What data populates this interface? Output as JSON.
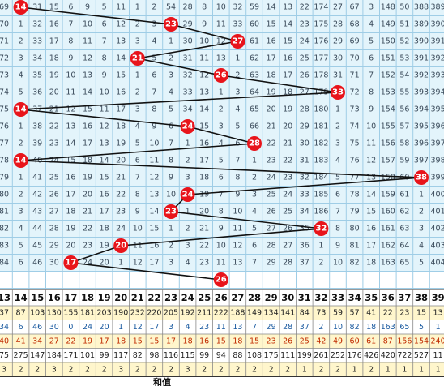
{
  "chart_data": {
    "type": "trend",
    "columns": [
      13,
      14,
      15,
      16,
      17,
      18,
      19,
      20,
      21,
      22,
      23,
      24,
      25,
      26,
      27,
      28,
      29,
      30,
      31,
      32,
      33,
      34,
      35,
      36,
      37,
      38,
      39
    ],
    "balls": [
      14,
      23,
      27,
      21,
      26,
      33,
      14,
      24,
      28,
      14,
      38,
      24,
      23,
      32,
      20,
      17,
      26
    ],
    "grid_rows": [
      [
        69,
        null,
        31,
        15,
        6,
        9,
        5,
        11,
        1,
        2,
        54,
        28,
        8,
        10,
        32,
        59,
        14,
        13,
        22,
        174,
        27,
        67,
        3,
        148,
        50,
        388,
        389
      ],
      [
        70,
        1,
        32,
        16,
        7,
        10,
        6,
        12,
        2,
        3,
        null,
        29,
        9,
        11,
        33,
        60,
        15,
        14,
        23,
        175,
        28,
        68,
        4,
        149,
        51,
        389,
        390
      ],
      [
        71,
        2,
        33,
        17,
        8,
        11,
        7,
        13,
        3,
        4,
        1,
        30,
        10,
        12,
        null,
        61,
        16,
        15,
        24,
        176,
        29,
        69,
        5,
        150,
        52,
        390,
        391
      ],
      [
        72,
        3,
        34,
        18,
        9,
        12,
        8,
        14,
        null,
        5,
        2,
        31,
        11,
        13,
        1,
        62,
        17,
        16,
        25,
        177,
        30,
        70,
        6,
        151,
        53,
        391,
        392
      ],
      [
        73,
        4,
        35,
        19,
        10,
        13,
        9,
        15,
        1,
        6,
        3,
        32,
        12,
        null,
        2,
        63,
        18,
        17,
        26,
        178,
        31,
        71,
        7,
        152,
        54,
        392,
        393
      ],
      [
        74,
        5,
        36,
        20,
        11,
        14,
        10,
        16,
        2,
        7,
        4,
        33,
        13,
        1,
        3,
        64,
        19,
        18,
        27,
        179,
        null,
        72,
        8,
        153,
        55,
        393,
        394
      ],
      [
        75,
        null,
        37,
        21,
        12,
        15,
        11,
        17,
        3,
        8,
        5,
        34,
        14,
        2,
        4,
        65,
        20,
        19,
        28,
        180,
        1,
        73,
        9,
        154,
        56,
        394,
        395
      ],
      [
        76,
        1,
        38,
        22,
        13,
        16,
        12,
        18,
        4,
        9,
        6,
        null,
        15,
        3,
        5,
        66,
        21,
        20,
        29,
        181,
        2,
        74,
        10,
        155,
        57,
        395,
        396
      ],
      [
        77,
        2,
        39,
        23,
        14,
        17,
        13,
        19,
        5,
        10,
        7,
        1,
        16,
        4,
        6,
        null,
        22,
        21,
        30,
        182,
        3,
        75,
        11,
        156,
        58,
        396,
        397
      ],
      [
        78,
        null,
        40,
        24,
        15,
        18,
        14,
        20,
        6,
        11,
        8,
        2,
        17,
        5,
        7,
        1,
        23,
        22,
        31,
        183,
        4,
        76,
        12,
        157,
        59,
        397,
        398
      ],
      [
        79,
        1,
        41,
        25,
        16,
        19,
        15,
        21,
        7,
        12,
        9,
        3,
        18,
        6,
        8,
        2,
        24,
        23,
        32,
        184,
        5,
        77,
        13,
        158,
        60,
        null,
        399
      ],
      [
        80,
        2,
        42,
        26,
        17,
        20,
        16,
        22,
        8,
        13,
        10,
        null,
        19,
        7,
        9,
        3,
        25,
        24,
        33,
        185,
        6,
        78,
        14,
        159,
        61,
        1,
        400
      ],
      [
        81,
        3,
        43,
        27,
        18,
        21,
        17,
        23,
        9,
        14,
        null,
        1,
        20,
        8,
        10,
        4,
        26,
        25,
        34,
        186,
        7,
        79,
        15,
        160,
        62,
        2,
        401
      ],
      [
        82,
        4,
        44,
        28,
        19,
        22,
        18,
        24,
        10,
        15,
        1,
        2,
        21,
        9,
        11,
        5,
        27,
        26,
        35,
        null,
        8,
        80,
        16,
        161,
        63,
        3,
        402
      ],
      [
        83,
        5,
        45,
        29,
        20,
        23,
        19,
        null,
        11,
        16,
        2,
        3,
        22,
        10,
        12,
        6,
        28,
        27,
        36,
        1,
        9,
        81,
        17,
        162,
        64,
        4,
        403
      ],
      [
        84,
        6,
        46,
        30,
        null,
        24,
        20,
        1,
        12,
        17,
        3,
        4,
        23,
        11,
        13,
        7,
        29,
        28,
        37,
        2,
        10,
        82,
        18,
        163,
        65,
        5,
        404
      ]
    ],
    "stats": [
      [
        37,
        87,
        103,
        130,
        155,
        181,
        203,
        190,
        232,
        220,
        205,
        192,
        211,
        222,
        188,
        149,
        134,
        141,
        84,
        73,
        59,
        57,
        41,
        22,
        23,
        15,
        13
      ],
      [
        34,
        6,
        46,
        30,
        0,
        24,
        20,
        1,
        12,
        17,
        3,
        4,
        23,
        11,
        13,
        7,
        29,
        28,
        37,
        2,
        10,
        82,
        18,
        163,
        65,
        5,
        1
      ],
      [
        40,
        41,
        34,
        27,
        22,
        19,
        17,
        18,
        15,
        15,
        17,
        18,
        16,
        15,
        18,
        15,
        23,
        26,
        25,
        42,
        49,
        60,
        61,
        87,
        156,
        154,
        240
      ],
      [
        75,
        275,
        147,
        184,
        171,
        101,
        99,
        117,
        82,
        98,
        116,
        115,
        99,
        94,
        88,
        108,
        175,
        111,
        199,
        261,
        252,
        176,
        426,
        420,
        722,
        527,
        11
      ],
      [
        3,
        2,
        2,
        3,
        2,
        2,
        2,
        3,
        2,
        2,
        2,
        3,
        2,
        2,
        2,
        2,
        2,
        2,
        1,
        2,
        2,
        1,
        2,
        1,
        1,
        1,
        1
      ]
    ],
    "stats_colors": [
      "#fff6cc",
      "#ffffff",
      "#fff6cc",
      "#ffffff",
      "#fff6cc"
    ],
    "footer_label": "和值"
  }
}
